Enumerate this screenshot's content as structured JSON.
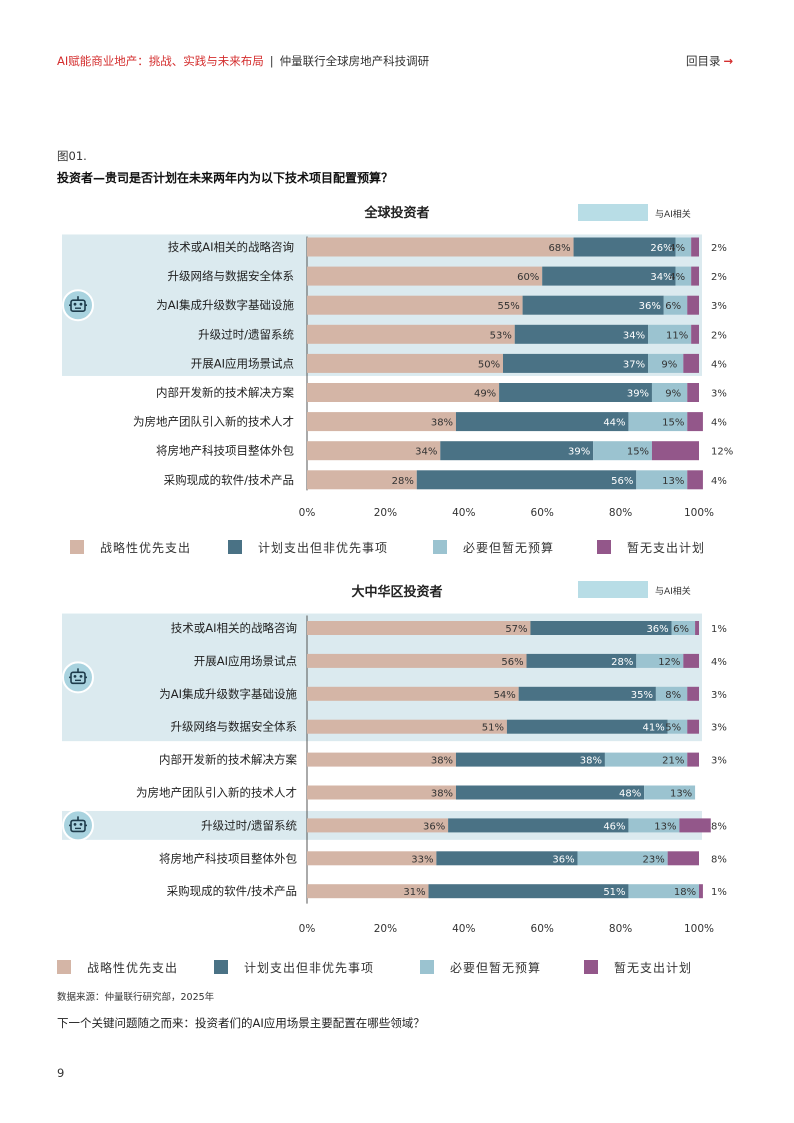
{
  "header": {
    "title": "AI赋能商业地产：挑战、实践与未来布局",
    "separator": "|",
    "subtitle": "仲量联行全球房地产科技调研",
    "back_label": "回目录",
    "back_arrow": "→"
  },
  "figure": {
    "label": "图01.",
    "question": "投资者—贵司是否计划在未来两年内为以下技术项目配置预算？"
  },
  "ai_legend_label": "与AI相关",
  "series_names": [
    "战略性优先支出",
    "计划支出但非优先事项",
    "必要但暂无预算",
    "暂无支出计划"
  ],
  "colors": {
    "strategic": "#d4b5a6",
    "planned": "#4a7285",
    "necessary": "#9bc3d0",
    "none": "#93578a",
    "ai_band": "#dbeaef",
    "accent": "#d42e2e"
  },
  "chart_data": [
    {
      "type": "bar",
      "orientation": "horizontal",
      "stacked": true,
      "title": "全球投资者",
      "categories": [
        "技术或AI相关的战略咨询",
        "升级网络与数据安全体系",
        "为AI集成升级数字基础设施",
        "升级过时/遗留系统",
        "开展AI应用场景试点",
        "内部开发新的技术解决方案",
        "为房地产团队引入新的技术人才",
        "将房地产科技项目整体外包",
        "采购现成的软件/技术产品"
      ],
      "ai_related": [
        true,
        true,
        true,
        true,
        true,
        false,
        false,
        false,
        false
      ],
      "series": [
        {
          "name": "战略性优先支出",
          "values": [
            68,
            60,
            55,
            53,
            50,
            49,
            38,
            34,
            28
          ]
        },
        {
          "name": "计划支出但非优先事项",
          "values": [
            26,
            34,
            36,
            34,
            37,
            39,
            44,
            39,
            56
          ]
        },
        {
          "name": "必要但暂无预算",
          "values": [
            4,
            4,
            6,
            11,
            9,
            9,
            15,
            15,
            13
          ]
        },
        {
          "name": "暂无支出计划",
          "values": [
            2,
            2,
            3,
            2,
            4,
            3,
            4,
            12,
            4
          ]
        }
      ],
      "xticks": [
        "0%",
        "20%",
        "40%",
        "60%",
        "80%",
        "100%"
      ],
      "xlim": [
        0,
        100
      ]
    },
    {
      "type": "bar",
      "orientation": "horizontal",
      "stacked": true,
      "title": "大中华区投资者",
      "categories": [
        "技术或AI相关的战略咨询",
        "开展AI应用场景试点",
        "为AI集成升级数字基础设施",
        "升级网络与数据安全体系",
        "内部开发新的技术解决方案",
        "为房地产团队引入新的技术人才",
        "升级过时/遗留系统",
        "将房地产科技项目整体外包",
        "采购现成的软件/技术产品"
      ],
      "ai_related": [
        true,
        true,
        true,
        true,
        false,
        false,
        true,
        false,
        false
      ],
      "series": [
        {
          "name": "战略性优先支出",
          "values": [
            57,
            56,
            54,
            51,
            38,
            38,
            36,
            33,
            31
          ]
        },
        {
          "name": "计划支出但非优先事项",
          "values": [
            36,
            28,
            35,
            41,
            38,
            48,
            46,
            36,
            51
          ]
        },
        {
          "name": "必要但暂无预算",
          "values": [
            6,
            12,
            8,
            5,
            21,
            13,
            13,
            23,
            18
          ]
        },
        {
          "name": "暂无支出计划",
          "values": [
            1,
            4,
            3,
            3,
            3,
            0,
            8,
            8,
            1
          ]
        }
      ],
      "xticks": [
        "0%",
        "20%",
        "40%",
        "60%",
        "80%",
        "100%"
      ],
      "xlim": [
        0,
        100
      ]
    }
  ],
  "source": "数据来源：仲量联行研究部，2025年",
  "next_question": "下一个关键问题随之而来：投资者们的AI应用场景主要配置在哪些领域？",
  "page_number": "9"
}
